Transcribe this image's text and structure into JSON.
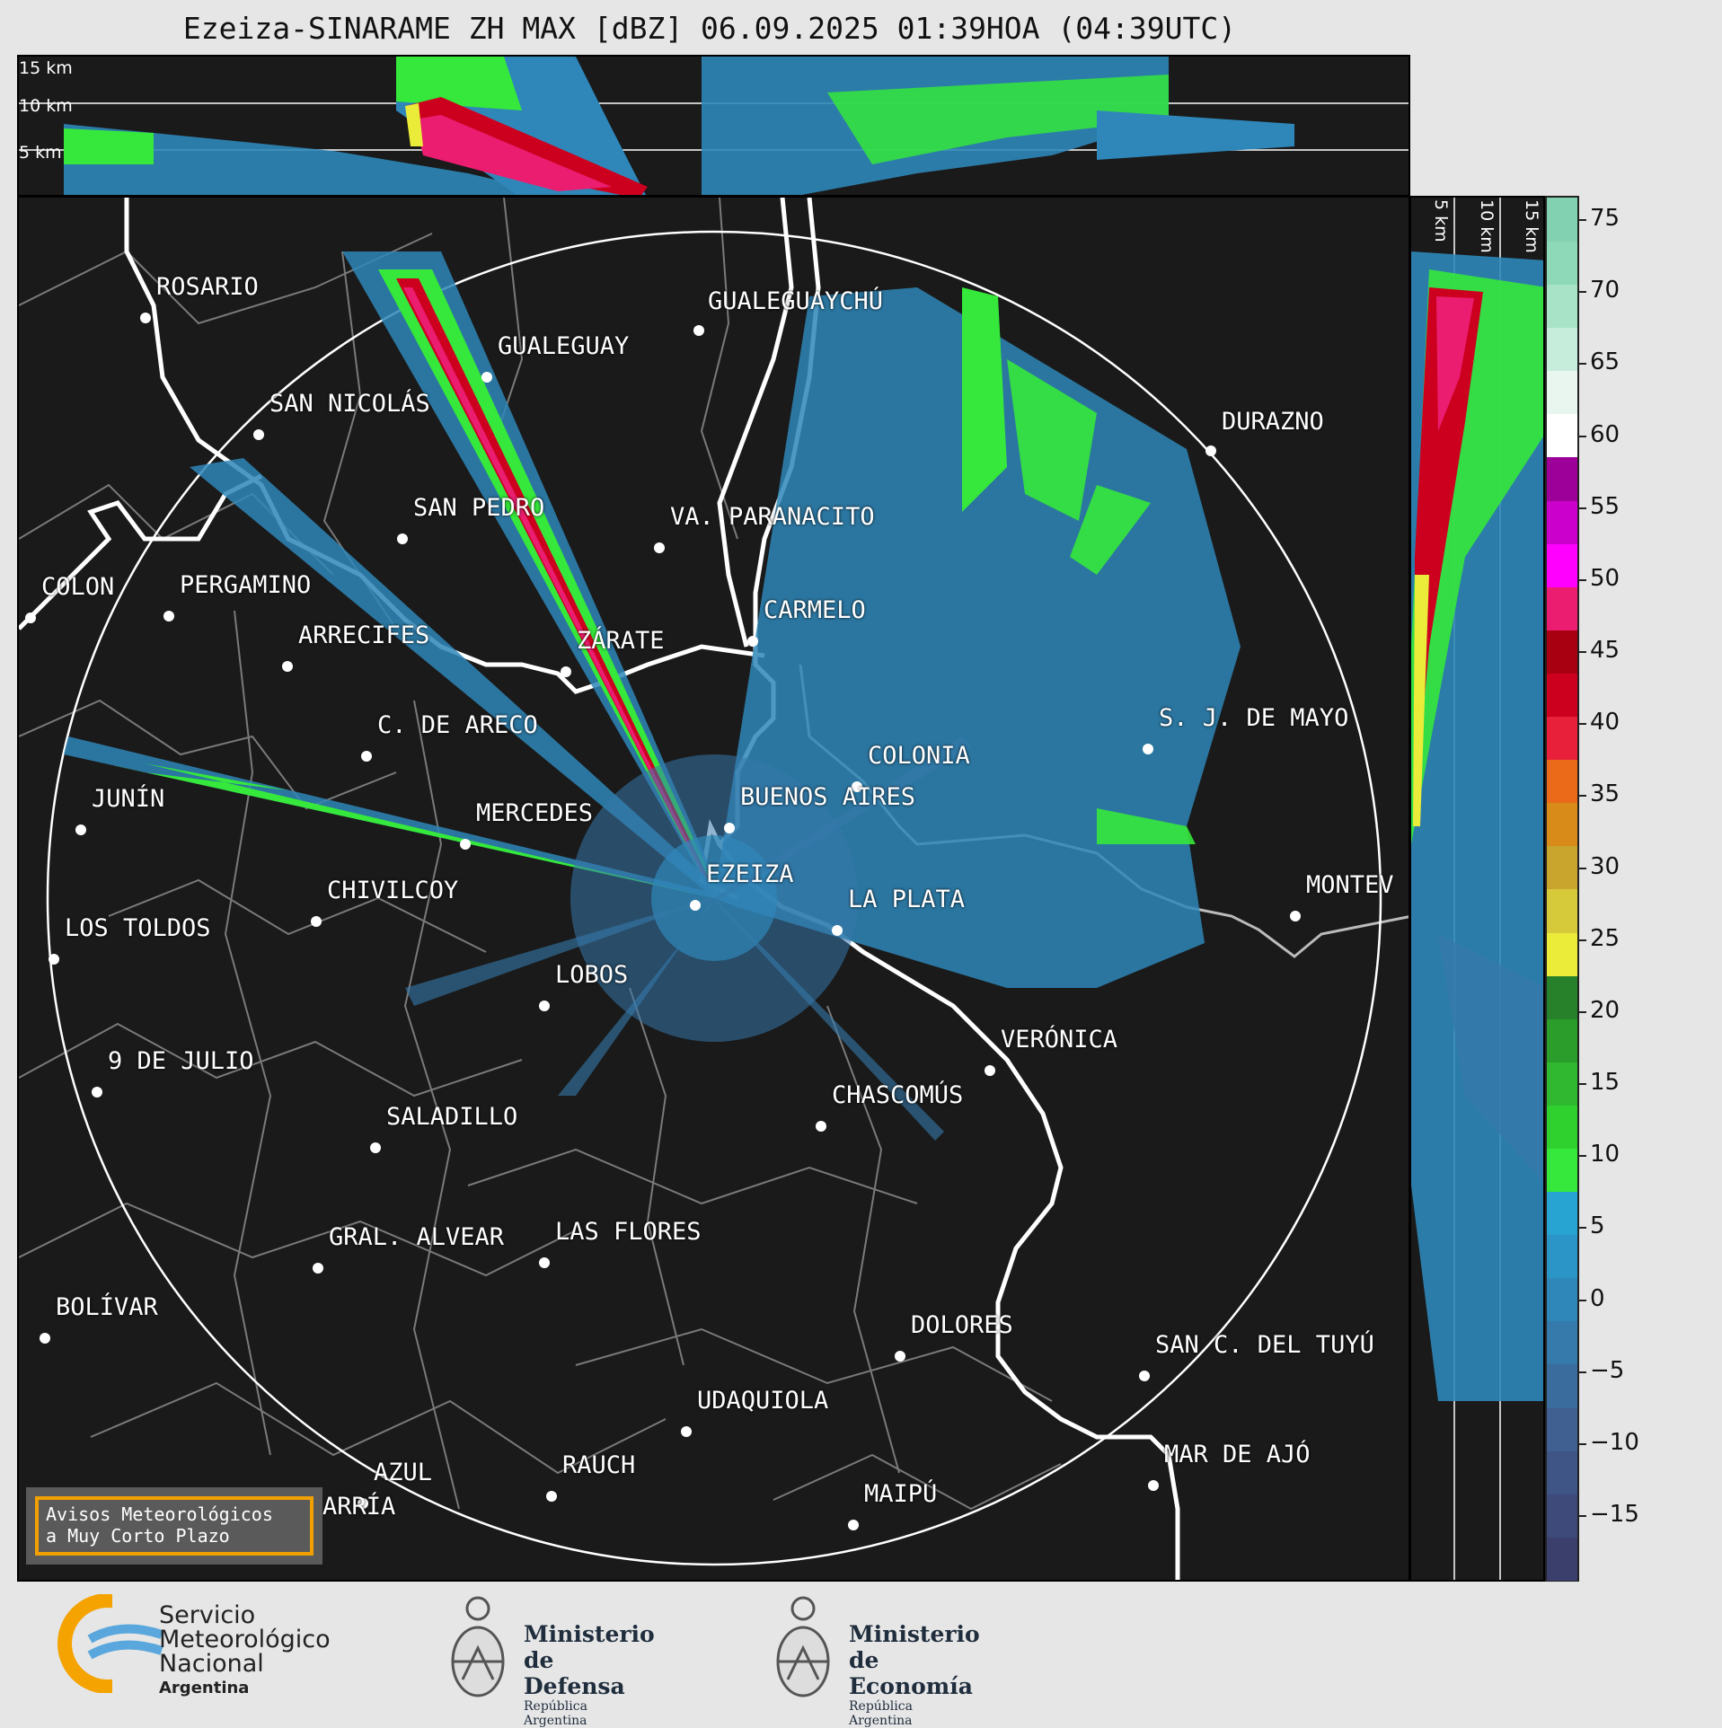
{
  "title": "Ezeiza-SINARAME ZH MAX [dBZ] 06.09.2025 01:39HOA (04:39UTC)",
  "altitude_labels": [
    "15 km",
    "10 km",
    "5 km"
  ],
  "cities": [
    {
      "name": "ROSARIO"
    },
    {
      "name": "GUALEGUAYCHÚ"
    },
    {
      "name": "GUALEGUAY"
    },
    {
      "name": "SAN NICOLÁS"
    },
    {
      "name": "DURAZNO"
    },
    {
      "name": "SAN PEDRO"
    },
    {
      "name": "VA. PARANACITO"
    },
    {
      "name": "COLON"
    },
    {
      "name": "PERGAMINO"
    },
    {
      "name": "CARMELO"
    },
    {
      "name": "ARRECIFES"
    },
    {
      "name": "ZÁRATE"
    },
    {
      "name": "S. J. DE MAYO"
    },
    {
      "name": "C. DE ARECO"
    },
    {
      "name": "COLONIA"
    },
    {
      "name": "JUNÍN"
    },
    {
      "name": "MERCEDES"
    },
    {
      "name": "BUENOS AIRES"
    },
    {
      "name": "MONTEV"
    },
    {
      "name": "EZEIZA"
    },
    {
      "name": "CHIVILCOY"
    },
    {
      "name": "LA PLATA"
    },
    {
      "name": "LOS TOLDOS"
    },
    {
      "name": "LOBOS"
    },
    {
      "name": "VERÓNICA"
    },
    {
      "name": "9 DE JULIO"
    },
    {
      "name": "CHASCOMÚS"
    },
    {
      "name": "SALADILLO"
    },
    {
      "name": "GRAL. ALVEAR"
    },
    {
      "name": "LAS FLORES"
    },
    {
      "name": "BOLÍVAR"
    },
    {
      "name": "DOLORES"
    },
    {
      "name": "SAN C. DEL TUYÚ"
    },
    {
      "name": "UDAQUIOLA"
    },
    {
      "name": "MAR DE AJÓ"
    },
    {
      "name": "AZUL"
    },
    {
      "name": "RAUCH"
    },
    {
      "name": "MAIPÚ"
    },
    {
      "name": "OLAVARRÍA"
    }
  ],
  "alert": {
    "line1": "Avisos Meteorológicos",
    "line2": "a Muy Corto Plazo"
  },
  "colorbar": {
    "ticks": [
      "75",
      "70",
      "65",
      "60",
      "55",
      "50",
      "45",
      "40",
      "35",
      "30",
      "25",
      "20",
      "15",
      "10",
      "5",
      "0",
      "−5",
      "−10",
      "−15"
    ],
    "colors": [
      "#3b3f6b",
      "#3e4a7a",
      "#3f5585",
      "#3f6090",
      "#3a6d9e",
      "#3679ab",
      "#2f87b9",
      "#2a95c6",
      "#28a4d3",
      "#35e83b",
      "#2fd12f",
      "#2fb830",
      "#2a9d2a",
      "#27812a",
      "#ebeb3a",
      "#d6c93a",
      "#c9a52e",
      "#d98b1a",
      "#ea6a1a",
      "#e8203a",
      "#cc001e",
      "#a80010",
      "#ea1d70",
      "#ff00ff",
      "#cc00cc",
      "#9d0099",
      "#ffffff",
      "#e8f6ef",
      "#c6ecdc",
      "#a8e3c8",
      "#8ed9b8",
      "#82d2b1"
    ]
  },
  "footer": {
    "smn_line1": "Servicio",
    "smn_line2": "Meteorológico",
    "smn_line3": "Nacional",
    "smn_line4": "Argentina",
    "defensa_line1": "Ministerio",
    "defensa_line2": "de Defensa",
    "defensa_line3": "República Argentina",
    "economia_line1": "Ministerio",
    "economia_line2": "de Economía",
    "economia_line3": "República Argentina"
  }
}
